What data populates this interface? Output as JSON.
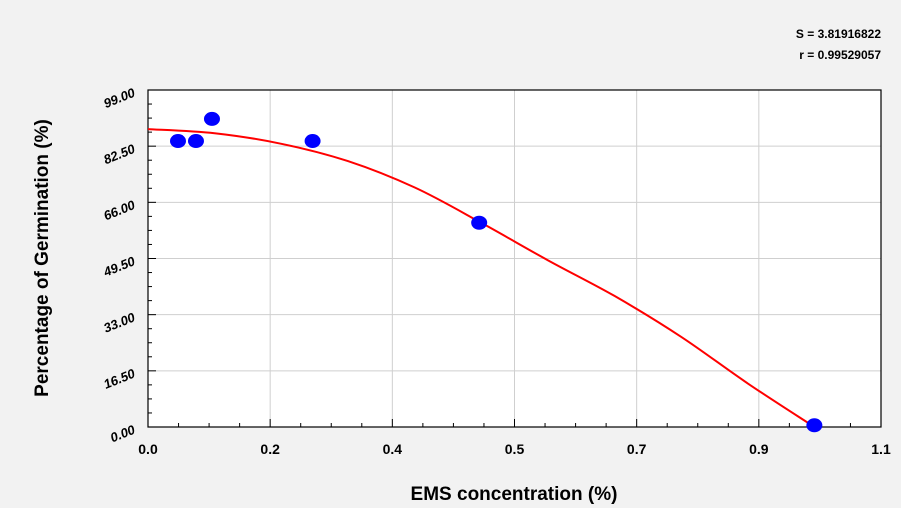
{
  "chart_data": {
    "type": "scatter",
    "title": "",
    "xlabel": "EMS concentration (%)",
    "ylabel": "Percentage of Germination (%)",
    "xlim": [
      0.0,
      1.1
    ],
    "ylim": [
      0.0,
      99.0
    ],
    "x_ticks": [
      "0.0",
      "0.2",
      "0.4",
      "0.5",
      "0.7",
      "0.9",
      "1.1"
    ],
    "y_ticks": [
      "0.00",
      "16.50",
      "33.00",
      "49.50",
      "66.00",
      "82.50",
      "99.00"
    ],
    "grid": true,
    "legend": "none",
    "stats": {
      "s_label": "S = 3.81916822",
      "r_label": "r = 0.99529057"
    },
    "series": [
      {
        "kind": "points",
        "color": "#0000ff",
        "x": [
          0.045,
          0.072,
          0.096,
          0.247,
          0.497,
          1.0
        ],
        "y": [
          84.0,
          84.0,
          90.5,
          84.0,
          60.0,
          0.5
        ]
      },
      {
        "kind": "fit-curve",
        "color": "#ff0000",
        "x": [
          0.0,
          0.1,
          0.2,
          0.3,
          0.4,
          0.5,
          0.6,
          0.7,
          0.8,
          0.9,
          1.0
        ],
        "y": [
          87.5,
          86.3,
          83.2,
          78.1,
          70.4,
          60.0,
          49.0,
          38.5,
          26.5,
          12.8,
          0.0
        ]
      }
    ]
  }
}
